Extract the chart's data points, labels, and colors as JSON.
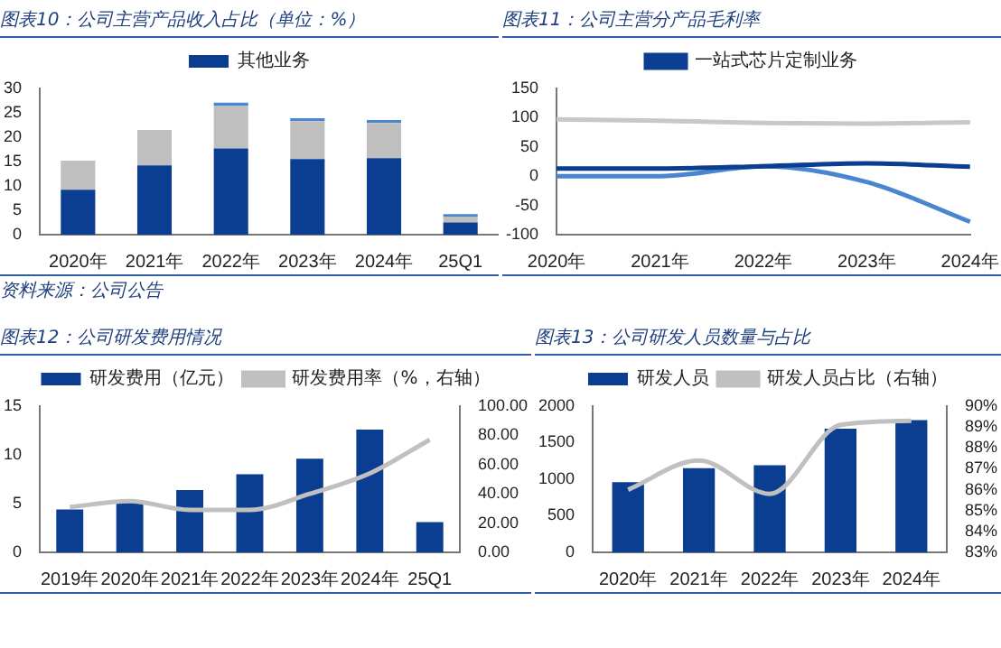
{
  "chart_data": [
    {
      "type": "bar",
      "title": "图表10：公司主营产品收入占比（单位：%）",
      "categories": [
        "2020年",
        "2021年",
        "2022年",
        "2023年",
        "2024年",
        "25Q1"
      ],
      "stacked": true,
      "legend": "top",
      "ylim": [
        0,
        30
      ],
      "yticks": [
        0,
        5,
        10,
        15,
        20,
        25,
        30
      ],
      "annotations": [
        "资料来源：公司公告"
      ],
      "series": [
        {
          "name": "其他业务",
          "color": "#0b3d91",
          "values": [
            9.2,
            14.2,
            17.7,
            15.5,
            15.7,
            2.5
          ]
        },
        {
          "color": "#bfbfbf",
          "values": [
            6,
            7.3,
            8.8,
            7.8,
            7.2,
            1.2
          ]
        },
        {
          "color": "#4a86d0",
          "values": [
            0,
            0,
            0.6,
            0.6,
            0.6,
            0.5
          ]
        }
      ]
    },
    {
      "type": "line",
      "title": "图表11：公司主营分产品毛利率",
      "categories": [
        "2020年",
        "2021年",
        "2022年",
        "2023年",
        "2024年"
      ],
      "legend": "top",
      "ylim": [
        -100,
        150
      ],
      "yticks": [
        -100,
        -50,
        0,
        50,
        100,
        150
      ],
      "series": [
        {
          "name": "一站式芯片定制业务",
          "color": "#0b3d91",
          "values": [
            13,
            13,
            17,
            22,
            16
          ]
        },
        {
          "color": "#c8c8c8",
          "values": [
            97,
            95,
            91,
            90,
            92
          ]
        },
        {
          "color": "#4a86d0",
          "values": [
            0,
            0,
            17,
            -10,
            -78
          ]
        }
      ]
    },
    {
      "type": "bar",
      "title": "图表12：公司研发费用情况",
      "categories": [
        "2019年",
        "2020年",
        "2021年",
        "2022年",
        "2023年",
        "2024年",
        "25Q1"
      ],
      "legend": "top",
      "ylim": [
        0,
        15
      ],
      "yticks": [
        0,
        5,
        10,
        15
      ],
      "y2lim": [
        0,
        100
      ],
      "y2ticks": [
        {
          "value": 0,
          "label": "0.00"
        },
        {
          "value": 20,
          "label": "20.00"
        },
        {
          "value": 40,
          "label": "40.00"
        },
        {
          "value": 60,
          "label": "60.00"
        },
        {
          "value": 80,
          "label": "80.00"
        },
        {
          "value": 100,
          "label": "100.00"
        }
      ],
      "series": [
        {
          "name": "研发费用（亿元）",
          "color": "#0b3d91",
          "values": [
            4.4,
            5.2,
            6.4,
            8.0,
            9.6,
            12.6,
            3.1
          ]
        },
        {
          "name": "研发费用率（%，右轴）",
          "type": "line",
          "axis": "y2",
          "color": "#c0c0c0",
          "values": [
            31,
            35,
            29,
            29,
            40,
            54,
            77
          ]
        }
      ]
    },
    {
      "type": "bar",
      "title": "图表13：公司研发人员数量与占比",
      "categories": [
        "2020年",
        "2021年",
        "2022年",
        "2023年",
        "2024年"
      ],
      "legend": "top",
      "ylim": [
        0,
        2000
      ],
      "yticks": [
        0,
        500,
        1000,
        1500,
        2000
      ],
      "y2lim": [
        83,
        90
      ],
      "y2ticks": [
        {
          "value": 83,
          "label": "83%"
        },
        {
          "value": 84,
          "label": "84%"
        },
        {
          "value": 85,
          "label": "85%"
        },
        {
          "value": 86,
          "label": "86%"
        },
        {
          "value": 87,
          "label": "87%"
        },
        {
          "value": 88,
          "label": "88%"
        },
        {
          "value": 89,
          "label": "89%"
        },
        {
          "value": 90,
          "label": "90%"
        }
      ],
      "series": [
        {
          "name": "研发人员",
          "color": "#0b3d91",
          "values": [
            960,
            1150,
            1190,
            1690,
            1810
          ]
        },
        {
          "name": "研发人员占比（右轴）",
          "type": "line",
          "axis": "y2",
          "color": "#c0c0c0",
          "values": [
            86.0,
            87.4,
            85.8,
            89.1,
            89.3
          ]
        }
      ]
    }
  ]
}
